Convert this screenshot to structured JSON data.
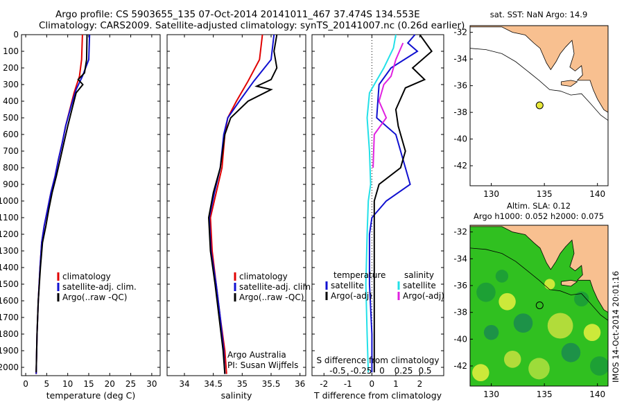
{
  "header": {
    "title_line1": "Argo profile: CS 5903655_135 07-Oct-2014 20141011_467 37.474S 134.553E",
    "title_line2": "Climatology: CARS2009. Satellite-adjusted climatology: synTS_20141007.nc (0.26d earlier)"
  },
  "colors": {
    "climatology": "#e00000",
    "satellite": "#1010d0",
    "argo": "#000000",
    "sal_satellite": "#22e0e8",
    "sal_argo": "#e020e0",
    "land": "#f8c090",
    "sla_sea": "#30c020"
  },
  "chart_data": [
    {
      "type": "line",
      "ylim": [
        0,
        2050
      ],
      "yticks": [
        0,
        100,
        200,
        300,
        400,
        500,
        600,
        700,
        800,
        900,
        1000,
        1100,
        1200,
        1300,
        1400,
        1500,
        1600,
        1700,
        1800,
        1900,
        2000
      ],
      "xlim": [
        -1,
        32
      ],
      "xticks": [
        0,
        5,
        10,
        15,
        20,
        25,
        30
      ],
      "xlabel": "temperature (deg C)",
      "legend": [
        "climatology",
        "satellite-adj. clim.",
        "Argo(..raw -QC)"
      ],
      "series": [
        {
          "name": "climatology",
          "color": "#e00000",
          "points": [
            [
              13.5,
              0
            ],
            [
              13.3,
              150
            ],
            [
              12.8,
              250
            ],
            [
              11.5,
              350
            ],
            [
              10.5,
              450
            ],
            [
              9.5,
              550
            ],
            [
              8.7,
              650
            ],
            [
              7.8,
              750
            ],
            [
              7.0,
              850
            ],
            [
              6.0,
              950
            ],
            [
              5.2,
              1050
            ],
            [
              4.4,
              1150
            ],
            [
              3.8,
              1250
            ],
            [
              3.4,
              1400
            ],
            [
              3.0,
              1600
            ],
            [
              2.7,
              1800
            ],
            [
              2.5,
              2040
            ]
          ]
        },
        {
          "name": "satellite-adj. clim.",
          "color": "#1010d0",
          "points": [
            [
              15.2,
              0
            ],
            [
              15.0,
              150
            ],
            [
              13.5,
              250
            ],
            [
              12.0,
              330
            ],
            [
              10.8,
              430
            ],
            [
              9.5,
              550
            ],
            [
              8.7,
              650
            ],
            [
              7.8,
              750
            ],
            [
              7.0,
              850
            ],
            [
              6.0,
              950
            ],
            [
              5.2,
              1050
            ],
            [
              4.4,
              1150
            ],
            [
              3.8,
              1250
            ],
            [
              3.4,
              1400
            ],
            [
              3.0,
              1600
            ],
            [
              2.7,
              1800
            ],
            [
              2.5,
              2040
            ]
          ]
        },
        {
          "name": "Argo(..raw -QC)",
          "color": "#000000",
          "points": [
            [
              14.6,
              0
            ],
            [
              14.5,
              150
            ],
            [
              14.0,
              230
            ],
            [
              12.5,
              270
            ],
            [
              13.6,
              300
            ],
            [
              12.0,
              350
            ],
            [
              11.0,
              450
            ],
            [
              10.0,
              550
            ],
            [
              9.1,
              650
            ],
            [
              8.2,
              750
            ],
            [
              7.3,
              850
            ],
            [
              6.3,
              950
            ],
            [
              5.5,
              1050
            ],
            [
              4.8,
              1150
            ],
            [
              4.0,
              1250
            ],
            [
              3.5,
              1400
            ],
            [
              3.0,
              1600
            ],
            [
              2.7,
              1800
            ],
            [
              2.5,
              2030
            ]
          ]
        }
      ]
    },
    {
      "type": "line",
      "ylim": [
        0,
        2050
      ],
      "xlim": [
        33.7,
        36.1
      ],
      "xticks": [
        34,
        34.5,
        35,
        35.5,
        36
      ],
      "xlabel": "salinity",
      "legend": [
        "climatology",
        "satellite-adj. clim.",
        "Argo(..raw -QC)"
      ],
      "annotation": [
        "Argo Australia",
        "PI: Susan Wijffels"
      ],
      "series": [
        {
          "name": "climatology",
          "color": "#e00000",
          "points": [
            [
              35.35,
              0
            ],
            [
              35.3,
              150
            ],
            [
              35.1,
              280
            ],
            [
              34.9,
              400
            ],
            [
              34.75,
              500
            ],
            [
              34.7,
              600
            ],
            [
              34.65,
              800
            ],
            [
              34.55,
              950
            ],
            [
              34.45,
              1100
            ],
            [
              34.48,
              1300
            ],
            [
              34.55,
              1500
            ],
            [
              34.62,
              1700
            ],
            [
              34.7,
              1900
            ],
            [
              34.73,
              2040
            ]
          ]
        },
        {
          "name": "satellite-adj. clim.",
          "color": "#1010d0",
          "points": [
            [
              35.55,
              0
            ],
            [
              35.5,
              150
            ],
            [
              35.2,
              280
            ],
            [
              34.95,
              400
            ],
            [
              34.75,
              500
            ],
            [
              34.68,
              600
            ],
            [
              34.62,
              800
            ],
            [
              34.52,
              950
            ],
            [
              34.43,
              1100
            ],
            [
              34.46,
              1300
            ],
            [
              34.55,
              1500
            ],
            [
              34.62,
              1700
            ],
            [
              34.68,
              1900
            ],
            [
              34.7,
              2040
            ]
          ]
        },
        {
          "name": "Argo(..raw -QC)",
          "color": "#000000",
          "points": [
            [
              35.6,
              0
            ],
            [
              35.55,
              100
            ],
            [
              35.6,
              200
            ],
            [
              35.5,
              270
            ],
            [
              35.25,
              310
            ],
            [
              35.5,
              330
            ],
            [
              35.1,
              400
            ],
            [
              34.8,
              500
            ],
            [
              34.7,
              600
            ],
            [
              34.62,
              800
            ],
            [
              34.5,
              950
            ],
            [
              34.42,
              1100
            ],
            [
              34.45,
              1300
            ],
            [
              34.53,
              1500
            ],
            [
              34.6,
              1700
            ],
            [
              34.67,
              1900
            ],
            [
              34.7,
              2040
            ]
          ]
        }
      ]
    },
    {
      "type": "line",
      "ylim": [
        0,
        2050
      ],
      "xlim": [
        -2.5,
        3.0
      ],
      "xticks": [
        -2,
        -1,
        0,
        1,
        2
      ],
      "xlabel": "T difference from climatology",
      "s_axis_label": "S difference from climatology",
      "s_ticks": [
        "-0.5",
        "-0.25",
        "0",
        "0.25",
        "0.5"
      ],
      "legend_temperature": [
        "temperature",
        "satellite",
        "Argo(-adj)"
      ],
      "legend_salinity": [
        "salinity",
        "satellite",
        "Argo(-adj)"
      ],
      "series": [
        {
          "name": "satellite",
          "color": "#1010d0",
          "points": [
            [
              1.8,
              0
            ],
            [
              1.5,
              50
            ],
            [
              1.9,
              100
            ],
            [
              0.8,
              200
            ],
            [
              0.3,
              300
            ],
            [
              0.2,
              500
            ],
            [
              1.0,
              600
            ],
            [
              1.2,
              700
            ],
            [
              1.6,
              900
            ],
            [
              0.6,
              1000
            ],
            [
              0.0,
              1100
            ],
            [
              -0.1,
              1200
            ],
            [
              -0.1,
              1500
            ],
            [
              0,
              1800
            ],
            [
              0,
              2030
            ]
          ]
        },
        {
          "name": "Argo(-adj)",
          "color": "#000000",
          "points": [
            [
              2.0,
              0
            ],
            [
              2.5,
              100
            ],
            [
              1.7,
              200
            ],
            [
              2.2,
              270
            ],
            [
              1.4,
              320
            ],
            [
              1.0,
              450
            ],
            [
              1.1,
              550
            ],
            [
              1.4,
              700
            ],
            [
              1.2,
              800
            ],
            [
              0.3,
              900
            ],
            [
              0.1,
              1000
            ],
            [
              0.1,
              1200
            ],
            [
              0.1,
              1500
            ],
            [
              0.1,
              1800
            ],
            [
              0.1,
              2030
            ]
          ]
        },
        {
          "name": "salinity satellite",
          "color": "#22e0e8",
          "points": [
            [
              1.0,
              0
            ],
            [
              0.9,
              80
            ],
            [
              0.5,
              200
            ],
            [
              -0.1,
              350
            ],
            [
              -0.2,
              500
            ],
            [
              -0.1,
              700
            ],
            [
              -0.05,
              900
            ],
            [
              -0.15,
              1000
            ],
            [
              -0.2,
              1200
            ],
            [
              -0.25,
              1500
            ],
            [
              -0.2,
              1800
            ],
            [
              -0.15,
              2030
            ]
          ]
        },
        {
          "name": "salinity Argo(-adj)",
          "color": "#e020e0",
          "points": [
            [
              1.3,
              50
            ],
            [
              1.0,
              150
            ],
            [
              0.8,
              250
            ],
            [
              0.5,
              300
            ],
            [
              0.3,
              400
            ],
            [
              0.6,
              500
            ],
            [
              0.1,
              600
            ],
            [
              0.05,
              800
            ]
          ]
        }
      ]
    },
    {
      "type": "scatter",
      "title": "sat. SST: NaN Argo: 14.9",
      "xlim": [
        128,
        141
      ],
      "xticks": [
        130,
        135,
        140
      ],
      "ylim": [
        -43.5,
        -31.5
      ],
      "yticks": [
        -32,
        -34,
        -36,
        -38,
        -40,
        -42
      ],
      "point": [
        134.553,
        -37.474
      ]
    },
    {
      "type": "heatmap",
      "title_line1": "Altim. SLA: 0.12",
      "title_line2": "Argo h1000: 0.052 h2000: 0.075",
      "xlim": [
        128,
        141
      ],
      "xticks": [
        130,
        135,
        140
      ],
      "ylim": [
        -43.5,
        -31.5
      ],
      "yticks": [
        -32,
        -34,
        -36,
        -38,
        -40,
        -42
      ],
      "point": [
        134.553,
        -37.474
      ],
      "side_label": "IMOS 14-Oct-2014 20:01:16"
    }
  ]
}
